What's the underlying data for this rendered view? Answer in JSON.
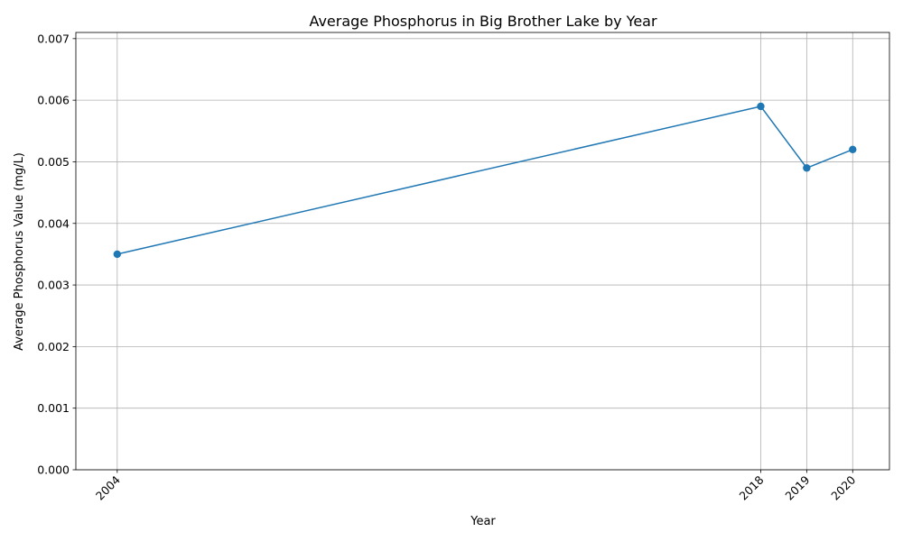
{
  "chart_data": {
    "type": "line",
    "title": "Average Phosphorus in Big Brother Lake by Year",
    "xlabel": "Year",
    "ylabel": "Average Phosphorus Value (mg/L)",
    "x": [
      2004,
      2018,
      2019,
      2020
    ],
    "x_tick_labels": [
      "2004",
      "2018",
      "2019",
      "2020"
    ],
    "series": [
      {
        "values": [
          0.0035,
          0.0059,
          0.0049,
          0.0052
        ]
      }
    ],
    "xlim": [
      2003.1,
      2020.8
    ],
    "ylim": [
      0,
      0.0071
    ],
    "y_ticks": [
      0,
      0.001,
      0.002,
      0.003,
      0.004,
      0.005,
      0.006,
      0.007
    ],
    "y_tick_labels": [
      "0.000",
      "0.001",
      "0.002",
      "0.003",
      "0.004",
      "0.005",
      "0.006",
      "0.007"
    ],
    "grid": true,
    "line_color": "#1f77b4",
    "markers": true
  }
}
